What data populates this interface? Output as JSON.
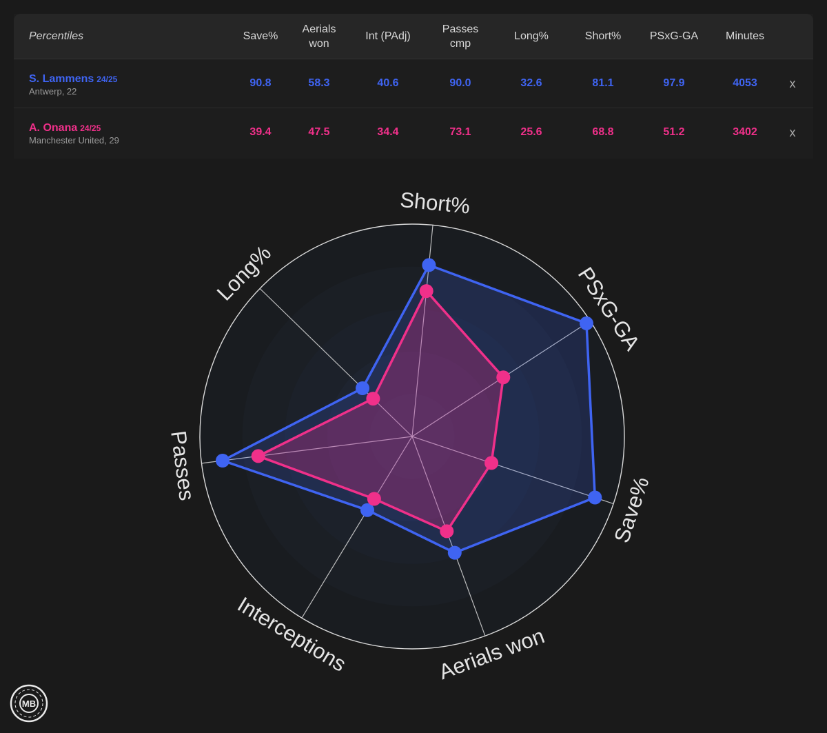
{
  "table": {
    "header_first": "Percentiles",
    "columns": [
      "Save%",
      "Aerials\nwon",
      "Int (PAdj)",
      "Passes\ncmp",
      "Long%",
      "Short%",
      "PSxG-GA",
      "Minutes"
    ],
    "remove_label": "x",
    "players": [
      {
        "name": "S. Lammens",
        "season": "24/25",
        "club": "Antwerp, 22",
        "color": "#3f64f2",
        "values": [
          "90.8",
          "58.3",
          "40.6",
          "90.0",
          "32.6",
          "81.1",
          "97.9",
          "4053"
        ]
      },
      {
        "name": "A. Onana",
        "season": "24/25",
        "club": "Manchester United, 29",
        "color": "#f0308a",
        "values": [
          "39.4",
          "47.5",
          "34.4",
          "73.1",
          "25.6",
          "68.8",
          "51.2",
          "3402"
        ]
      }
    ]
  },
  "chart_data": {
    "type": "radar",
    "axes": [
      "Short%",
      "PSxG-GA",
      "Save%",
      "Aerials won",
      "Interceptions",
      "Passes",
      "Long%"
    ],
    "range": [
      0,
      100
    ],
    "series": [
      {
        "name": "S. Lammens",
        "color": "#3f64f2",
        "values": [
          81.1,
          97.9,
          90.8,
          58.3,
          40.6,
          90.0,
          32.6
        ]
      },
      {
        "name": "A. Onana",
        "color": "#f0308a",
        "values": [
          68.8,
          51.2,
          39.4,
          47.5,
          34.4,
          73.1,
          25.6
        ]
      }
    ]
  },
  "logo": {
    "text": "MB",
    "icon": "mb-logo-icon"
  }
}
